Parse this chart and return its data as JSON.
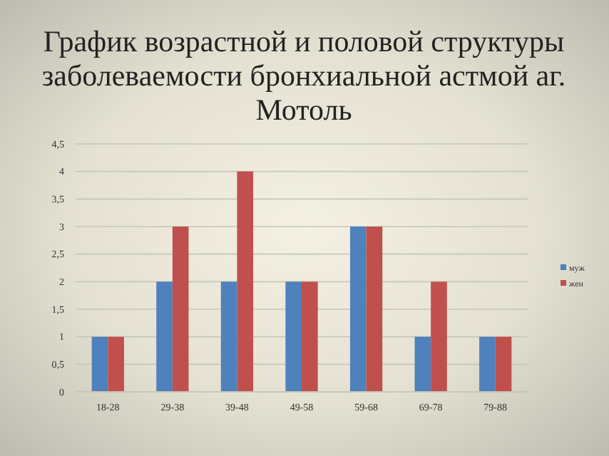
{
  "chart_data": {
    "type": "bar",
    "title": "График возрастной и половой структуры заболеваемости бронхиальной астмой аг. Мотоль",
    "categories": [
      "18-28",
      "29-38",
      "39-48",
      "49-58",
      "59-68",
      "69-78",
      "79-88"
    ],
    "series": [
      {
        "name": "муж",
        "color": "#4f81bd",
        "values": [
          1,
          2,
          2,
          2,
          3,
          1,
          1
        ]
      },
      {
        "name": "жен",
        "color": "#c0504d",
        "values": [
          1,
          3,
          4,
          2,
          3,
          2,
          1
        ]
      }
    ],
    "ylim": [
      0,
      4.5
    ],
    "yticks": [
      0,
      {
        "value": 0.5,
        "label": "0,5"
      },
      1,
      {
        "value": 1.5,
        "label": "1,5"
      },
      2,
      {
        "value": 2.5,
        "label": "2,5"
      },
      3,
      {
        "value": 3.5,
        "label": "3,5"
      },
      4,
      {
        "value": 4.5,
        "label": "4,5"
      }
    ],
    "grid": "y",
    "legend": "right"
  }
}
